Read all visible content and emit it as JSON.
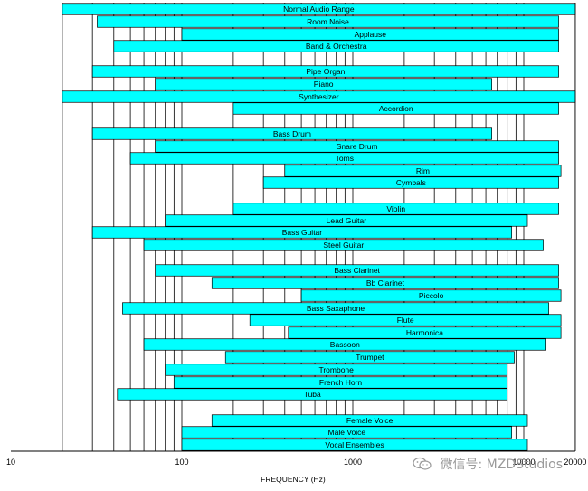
{
  "chart_data": {
    "type": "bar",
    "orientation": "horizontal",
    "scale": "log",
    "xlim": [
      10,
      20000
    ],
    "xlabel": "FREQUENCY (Hz)",
    "x_ticks": [
      10,
      100,
      1000,
      10000,
      20000
    ],
    "x_tick_labels": [
      "10",
      "100",
      "1000",
      "10000",
      "20000"
    ],
    "bar_color": "#00ffff",
    "bars": [
      {
        "label": "Normal Audio Range",
        "low": 20,
        "high": 20000
      },
      {
        "label": "Room Noise",
        "low": 32,
        "high": 16000
      },
      {
        "label": "Applause",
        "low": 100,
        "high": 16000
      },
      {
        "label": "Band & Orchestra",
        "low": 40,
        "high": 16000
      },
      {
        "label": "Pipe Organ",
        "low": 30,
        "high": 16000
      },
      {
        "label": "Piano",
        "low": 70,
        "high": 6500
      },
      {
        "label": "Synthesizer",
        "low": 20,
        "high": 20000
      },
      {
        "label": "Accordion",
        "low": 200,
        "high": 16000
      },
      {
        "label": "Bass Drum",
        "low": 30,
        "high": 6500
      },
      {
        "label": "Snare Drum",
        "low": 70,
        "high": 16000
      },
      {
        "label": "Toms",
        "low": 50,
        "high": 16000
      },
      {
        "label": "Rim",
        "low": 400,
        "high": 16500
      },
      {
        "label": "Cymbals",
        "low": 300,
        "high": 16000
      },
      {
        "label": "Violin",
        "low": 200,
        "high": 16000
      },
      {
        "label": "Lead Guitar",
        "low": 80,
        "high": 10500
      },
      {
        "label": "Bass Guitar",
        "low": 30,
        "high": 8500
      },
      {
        "label": "Steel Guitar",
        "low": 60,
        "high": 13000
      },
      {
        "label": "Bass Clarinet",
        "low": 70,
        "high": 16000
      },
      {
        "label": "Bb Clarinet",
        "low": 150,
        "high": 16000
      },
      {
        "label": "Piccolo",
        "low": 500,
        "high": 16500
      },
      {
        "label": "Bass Saxaphone",
        "low": 45,
        "high": 14000
      },
      {
        "label": "Flute",
        "low": 250,
        "high": 16500
      },
      {
        "label": "Harmonica",
        "low": 420,
        "high": 16500
      },
      {
        "label": "Bassoon",
        "low": 60,
        "high": 13500
      },
      {
        "label": "Trumpet",
        "low": 180,
        "high": 8800
      },
      {
        "label": "Trombone",
        "low": 80,
        "high": 8000
      },
      {
        "label": "French Horn",
        "low": 90,
        "high": 8000
      },
      {
        "label": "Tuba",
        "low": 42,
        "high": 8000
      },
      {
        "label": "Female Voice",
        "low": 150,
        "high": 10500
      },
      {
        "label": "Male Voice",
        "low": 100,
        "high": 8500
      },
      {
        "label": "Vocal Ensembles",
        "low": 100,
        "high": 10500
      }
    ]
  },
  "watermark": {
    "text": "微信号: MZDStudios",
    "icon": "wechat-icon"
  }
}
